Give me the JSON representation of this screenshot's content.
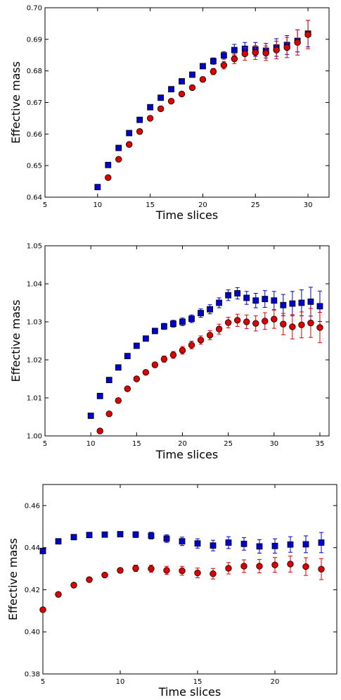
{
  "chart_data": [
    {
      "type": "scatter",
      "title": "",
      "xlabel": "Time slices",
      "ylabel": "Effective mass",
      "xlim": [
        5,
        32
      ],
      "ylim": [
        0.64,
        0.7
      ],
      "xticks": [
        5,
        10,
        15,
        20,
        25,
        30
      ],
      "yticks": [
        0.64,
        0.65,
        0.66,
        0.67,
        0.68,
        0.69,
        0.7
      ],
      "xtick_labels": [
        "5",
        "10",
        "15",
        "20",
        "25",
        "30"
      ],
      "ytick_labels": [
        "0.64",
        "0.65",
        "0.66",
        "0.67",
        "0.68",
        "0.69",
        "0.70"
      ],
      "grid": false,
      "series": [
        {
          "marker": "square",
          "color": "#0000cc",
          "points": [
            {
              "x": 10,
              "y": 0.6432,
              "err": 0.0002
            },
            {
              "x": 11,
              "y": 0.6502,
              "err": 0.0002
            },
            {
              "x": 12,
              "y": 0.6556,
              "err": 0.0003
            },
            {
              "x": 13,
              "y": 0.6603,
              "err": 0.0003
            },
            {
              "x": 14,
              "y": 0.6645,
              "err": 0.0003
            },
            {
              "x": 15,
              "y": 0.6685,
              "err": 0.0004
            },
            {
              "x": 16,
              "y": 0.6715,
              "err": 0.0004
            },
            {
              "x": 17,
              "y": 0.6742,
              "err": 0.0005
            },
            {
              "x": 18,
              "y": 0.6767,
              "err": 0.0006
            },
            {
              "x": 19,
              "y": 0.6788,
              "err": 0.0007
            },
            {
              "x": 20,
              "y": 0.6815,
              "err": 0.0008
            },
            {
              "x": 21,
              "y": 0.6831,
              "err": 0.001
            },
            {
              "x": 22,
              "y": 0.6849,
              "err": 0.0012
            },
            {
              "x": 23,
              "y": 0.6866,
              "err": 0.0018
            },
            {
              "x": 24,
              "y": 0.687,
              "err": 0.002
            },
            {
              "x": 25,
              "y": 0.6868,
              "err": 0.0022
            },
            {
              "x": 26,
              "y": 0.6864,
              "err": 0.0023
            },
            {
              "x": 27,
              "y": 0.6874,
              "err": 0.0028
            },
            {
              "x": 28,
              "y": 0.6882,
              "err": 0.003
            },
            {
              "x": 29,
              "y": 0.6895,
              "err": 0.0035
            },
            {
              "x": 30,
              "y": 0.6918,
              "err": 0.0042
            }
          ]
        },
        {
          "marker": "circle",
          "color": "#dd0000",
          "points": [
            {
              "x": 11,
              "y": 0.6462,
              "err": 0.0002
            },
            {
              "x": 12,
              "y": 0.652,
              "err": 0.0002
            },
            {
              "x": 13,
              "y": 0.6567,
              "err": 0.0003
            },
            {
              "x": 14,
              "y": 0.6608,
              "err": 0.0003
            },
            {
              "x": 15,
              "y": 0.665,
              "err": 0.0004
            },
            {
              "x": 16,
              "y": 0.668,
              "err": 0.0004
            },
            {
              "x": 17,
              "y": 0.6704,
              "err": 0.0005
            },
            {
              "x": 18,
              "y": 0.6727,
              "err": 0.0006
            },
            {
              "x": 19,
              "y": 0.6747,
              "err": 0.0007
            },
            {
              "x": 20,
              "y": 0.6773,
              "err": 0.0008
            },
            {
              "x": 21,
              "y": 0.6798,
              "err": 0.001
            },
            {
              "x": 22,
              "y": 0.6818,
              "err": 0.0012
            },
            {
              "x": 23,
              "y": 0.6838,
              "err": 0.0015
            },
            {
              "x": 24,
              "y": 0.6854,
              "err": 0.002
            },
            {
              "x": 25,
              "y": 0.6858,
              "err": 0.0022
            },
            {
              "x": 26,
              "y": 0.6856,
              "err": 0.0023
            },
            {
              "x": 27,
              "y": 0.6866,
              "err": 0.0028
            },
            {
              "x": 28,
              "y": 0.6874,
              "err": 0.0032
            },
            {
              "x": 29,
              "y": 0.689,
              "err": 0.004
            },
            {
              "x": 30,
              "y": 0.6915,
              "err": 0.0045
            }
          ]
        }
      ]
    },
    {
      "type": "scatter",
      "title": "",
      "xlabel": "Time slices",
      "ylabel": "Effective mass",
      "xlim": [
        5,
        36
      ],
      "ylim": [
        1.0,
        1.05
      ],
      "xticks": [
        5,
        10,
        15,
        20,
        25,
        30,
        35
      ],
      "yticks": [
        1.0,
        1.01,
        1.02,
        1.03,
        1.04,
        1.05
      ],
      "xtick_labels": [
        "5",
        "10",
        "15",
        "20",
        "25",
        "30",
        "35"
      ],
      "ytick_labels": [
        "1.00",
        "1.01",
        "1.02",
        "1.03",
        "1.04",
        "1.05"
      ],
      "grid": false,
      "series": [
        {
          "marker": "square",
          "color": "#0000cc",
          "points": [
            {
              "x": 10,
              "y": 1.0053,
              "err": 0.0003
            },
            {
              "x": 11,
              "y": 1.0105,
              "err": 0.0003
            },
            {
              "x": 12,
              "y": 1.0147,
              "err": 0.0003
            },
            {
              "x": 13,
              "y": 1.018,
              "err": 0.0003
            },
            {
              "x": 14,
              "y": 1.021,
              "err": 0.0004
            },
            {
              "x": 15,
              "y": 1.0237,
              "err": 0.0005
            },
            {
              "x": 16,
              "y": 1.0256,
              "err": 0.0006
            },
            {
              "x": 17,
              "y": 1.0276,
              "err": 0.0007
            },
            {
              "x": 18,
              "y": 1.0288,
              "err": 0.0008
            },
            {
              "x": 19,
              "y": 1.0295,
              "err": 0.0009
            },
            {
              "x": 20,
              "y": 1.03,
              "err": 0.001
            },
            {
              "x": 21,
              "y": 1.0308,
              "err": 0.001
            },
            {
              "x": 22,
              "y": 1.0323,
              "err": 0.0011
            },
            {
              "x": 23,
              "y": 1.0333,
              "err": 0.0012
            },
            {
              "x": 24,
              "y": 1.035,
              "err": 0.0013
            },
            {
              "x": 25,
              "y": 1.037,
              "err": 0.0014
            },
            {
              "x": 26,
              "y": 1.0375,
              "err": 0.0015
            },
            {
              "x": 27,
              "y": 1.0363,
              "err": 0.0017
            },
            {
              "x": 28,
              "y": 1.0356,
              "err": 0.0019
            },
            {
              "x": 29,
              "y": 1.036,
              "err": 0.0022
            },
            {
              "x": 30,
              "y": 1.0356,
              "err": 0.0024
            },
            {
              "x": 31,
              "y": 1.0344,
              "err": 0.0028
            },
            {
              "x": 32,
              "y": 1.0348,
              "err": 0.0032
            },
            {
              "x": 33,
              "y": 1.035,
              "err": 0.0034
            },
            {
              "x": 34,
              "y": 1.0353,
              "err": 0.0038
            },
            {
              "x": 35,
              "y": 1.0341,
              "err": 0.004
            }
          ]
        },
        {
          "marker": "circle",
          "color": "#dd0000",
          "points": [
            {
              "x": 11,
              "y": 1.0013,
              "err": 0.0003
            },
            {
              "x": 12,
              "y": 1.0058,
              "err": 0.0003
            },
            {
              "x": 13,
              "y": 1.0093,
              "err": 0.0003
            },
            {
              "x": 14,
              "y": 1.0124,
              "err": 0.0004
            },
            {
              "x": 15,
              "y": 1.015,
              "err": 0.0005
            },
            {
              "x": 16,
              "y": 1.0167,
              "err": 0.0006
            },
            {
              "x": 17,
              "y": 1.0187,
              "err": 0.0007
            },
            {
              "x": 18,
              "y": 1.0202,
              "err": 0.0008
            },
            {
              "x": 19,
              "y": 1.0213,
              "err": 0.0009
            },
            {
              "x": 20,
              "y": 1.0225,
              "err": 0.001
            },
            {
              "x": 21,
              "y": 1.0239,
              "err": 0.001
            },
            {
              "x": 22,
              "y": 1.0252,
              "err": 0.0011
            },
            {
              "x": 23,
              "y": 1.0265,
              "err": 0.0012
            },
            {
              "x": 24,
              "y": 1.0281,
              "err": 0.0013
            },
            {
              "x": 25,
              "y": 1.0298,
              "err": 0.0014
            },
            {
              "x": 26,
              "y": 1.0304,
              "err": 0.0016
            },
            {
              "x": 27,
              "y": 1.03,
              "err": 0.0018
            },
            {
              "x": 28,
              "y": 1.0296,
              "err": 0.002
            },
            {
              "x": 29,
              "y": 1.0302,
              "err": 0.0022
            },
            {
              "x": 30,
              "y": 1.0307,
              "err": 0.0024
            },
            {
              "x": 31,
              "y": 1.0294,
              "err": 0.0028
            },
            {
              "x": 32,
              "y": 1.0287,
              "err": 0.0032
            },
            {
              "x": 33,
              "y": 1.0292,
              "err": 0.0034
            },
            {
              "x": 34,
              "y": 1.0297,
              "err": 0.0038
            },
            {
              "x": 35,
              "y": 1.0285,
              "err": 0.004
            }
          ]
        }
      ]
    },
    {
      "type": "scatter",
      "title": "",
      "xlabel": "Time slices",
      "ylabel": "Effective mass",
      "xlim": [
        5,
        24
      ],
      "ylim": [
        0.38,
        0.47
      ],
      "xticks": [
        5,
        10,
        15,
        20
      ],
      "yticks": [
        0.38,
        0.4,
        0.42,
        0.44,
        0.46
      ],
      "xtick_labels": [
        "5",
        "10",
        "15",
        "20"
      ],
      "ytick_labels": [
        "0.38",
        "0.40",
        "0.42",
        "0.44",
        "0.46"
      ],
      "grid": false,
      "series": [
        {
          "marker": "square",
          "color": "#0000cc",
          "points": [
            {
              "x": 5,
              "y": 0.4384,
              "err": 0.0008
            },
            {
              "x": 6,
              "y": 0.443,
              "err": 0.0008
            },
            {
              "x": 7,
              "y": 0.445,
              "err": 0.0009
            },
            {
              "x": 8,
              "y": 0.446,
              "err": 0.001
            },
            {
              "x": 9,
              "y": 0.4462,
              "err": 0.001
            },
            {
              "x": 10,
              "y": 0.4464,
              "err": 0.0011
            },
            {
              "x": 11,
              "y": 0.4462,
              "err": 0.0014
            },
            {
              "x": 12,
              "y": 0.4457,
              "err": 0.0016
            },
            {
              "x": 13,
              "y": 0.4443,
              "err": 0.0018
            },
            {
              "x": 14,
              "y": 0.443,
              "err": 0.002
            },
            {
              "x": 15,
              "y": 0.442,
              "err": 0.0022
            },
            {
              "x": 16,
              "y": 0.441,
              "err": 0.0025
            },
            {
              "x": 17,
              "y": 0.4424,
              "err": 0.0028
            },
            {
              "x": 18,
              "y": 0.4418,
              "err": 0.003
            },
            {
              "x": 19,
              "y": 0.4406,
              "err": 0.0032
            },
            {
              "x": 20,
              "y": 0.4408,
              "err": 0.0034
            },
            {
              "x": 21,
              "y": 0.4415,
              "err": 0.0037
            },
            {
              "x": 22,
              "y": 0.4416,
              "err": 0.004
            },
            {
              "x": 23,
              "y": 0.4424,
              "err": 0.0048
            }
          ]
        },
        {
          "marker": "circle",
          "color": "#dd0000",
          "points": [
            {
              "x": 5,
              "y": 0.4105,
              "err": 0.0005
            },
            {
              "x": 6,
              "y": 0.4178,
              "err": 0.0006
            },
            {
              "x": 7,
              "y": 0.4222,
              "err": 0.0007
            },
            {
              "x": 8,
              "y": 0.4248,
              "err": 0.0008
            },
            {
              "x": 9,
              "y": 0.427,
              "err": 0.0009
            },
            {
              "x": 10,
              "y": 0.4292,
              "err": 0.0012
            },
            {
              "x": 11,
              "y": 0.4302,
              "err": 0.0015
            },
            {
              "x": 12,
              "y": 0.43,
              "err": 0.0017
            },
            {
              "x": 13,
              "y": 0.4292,
              "err": 0.0019
            },
            {
              "x": 14,
              "y": 0.429,
              "err": 0.0021
            },
            {
              "x": 15,
              "y": 0.428,
              "err": 0.0023
            },
            {
              "x": 16,
              "y": 0.4276,
              "err": 0.0025
            },
            {
              "x": 17,
              "y": 0.4302,
              "err": 0.0027
            },
            {
              "x": 18,
              "y": 0.4312,
              "err": 0.003
            },
            {
              "x": 19,
              "y": 0.4312,
              "err": 0.0032
            },
            {
              "x": 20,
              "y": 0.4318,
              "err": 0.0035
            },
            {
              "x": 21,
              "y": 0.4322,
              "err": 0.0038
            },
            {
              "x": 22,
              "y": 0.431,
              "err": 0.0042
            },
            {
              "x": 23,
              "y": 0.4298,
              "err": 0.005
            }
          ]
        }
      ]
    }
  ]
}
